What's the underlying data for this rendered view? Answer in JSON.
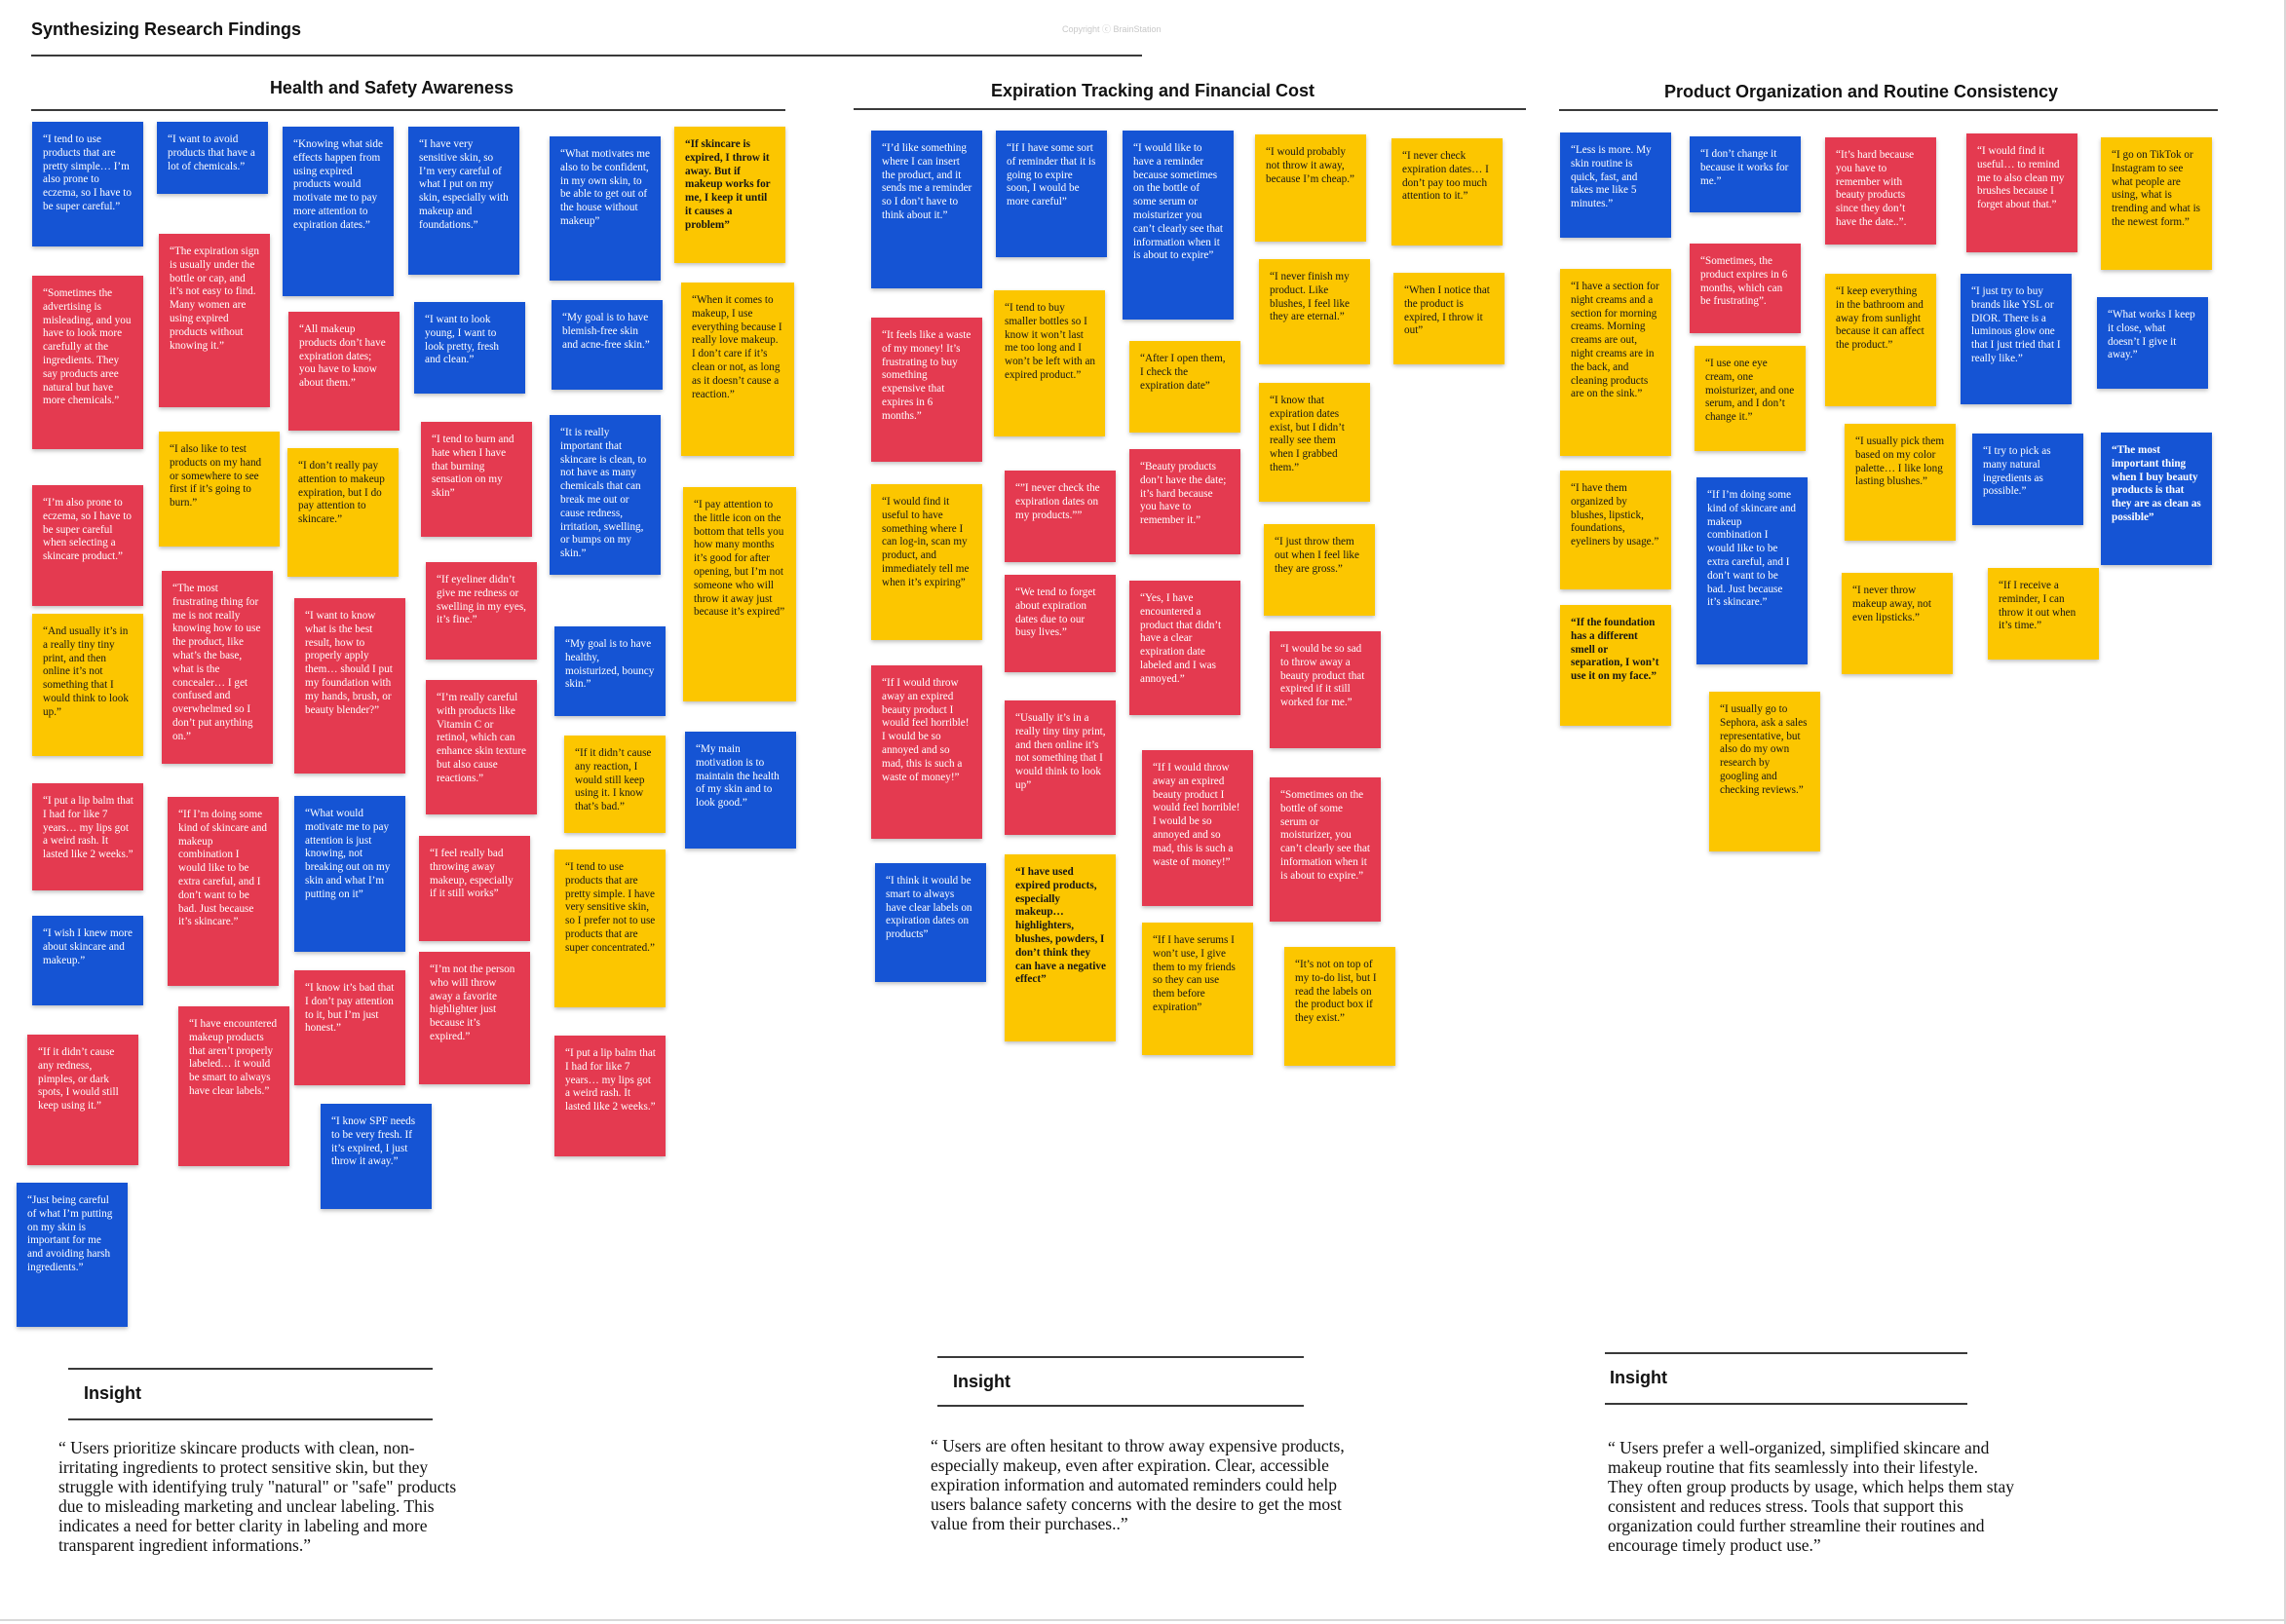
{
  "page": {
    "title": "Synthesizing Research Findings",
    "copyright": "Copyright ⓒ BrainStation"
  },
  "colors": {
    "blue": "#1554d4",
    "red": "#e43a50",
    "yellow": "#fcc600"
  },
  "sections": [
    {
      "title": "Health and Safety Awareness",
      "insight_label": "Insight",
      "insight_text": "“ Users prioritize skincare products with clean, non-irritating ingredients to protect sensitive skin, but they struggle with identifying truly \"natural\" or \"safe\" products due to misleading marketing and unclear labeling. This indicates a need for better clarity in labeling and more transparent ingredient informations.”"
    },
    {
      "title": "Expiration Tracking and Financial Cost",
      "insight_label": "Insight",
      "insight_text": "“ Users are often hesitant to throw away expensive products, especially makeup, even after expiration. Clear, accessible expiration information and automated reminders could help users balance safety concerns with the desire to get the most value from their purchases..”"
    },
    {
      "title": "Product Organization and Routine Consistency",
      "insight_label": "Insight",
      "insight_text": "“ Users prefer a well-organized, simplified skincare and makeup routine that fits seamlessly into their lifestyle. They often group products by usage, which helps them stay consistent and reduces stress. Tools that support this organization could further streamline their routines and encourage timely product use.”"
    }
  ],
  "notes": [
    {
      "color": "blue",
      "text": "“I tend to use products that are pretty simple… I’m also prone to eczema, so I have to be super careful.”"
    },
    {
      "color": "red",
      "text": "“Sometimes the advertising is misleading, and you have to look more carefully at the ingredients. They say products aree natural but have more chemicals.”"
    },
    {
      "color": "red",
      "text": "“I’m also prone to eczema, so I have to be super careful when selecting a skincare product.”"
    },
    {
      "color": "yellow",
      "text": "“And usually it’s in a really tiny tiny print, and then online it’s not something that I would think to look up.”"
    },
    {
      "color": "red",
      "text": "“I put a lip balm that I had for like 7 years… my lips got a weird rash. It lasted like 2 weeks.”"
    },
    {
      "color": "blue",
      "text": "“I wish I knew more about skincare and makeup.”"
    },
    {
      "color": "red",
      "text": "“If it didn’t cause any redness, pimples, or dark spots, I would still keep using it.”"
    },
    {
      "color": "blue",
      "text": "“Just being careful of what I’m putting on my skin is important for me and avoiding harsh ingredients.”"
    },
    {
      "color": "blue",
      "text": "“I want to avoid products that have a lot of chemicals.”"
    },
    {
      "color": "red",
      "text": "“The expiration sign is usually under the bottle or cap, and it’s not easy to find. Many women are using expired products without knowing it.”"
    },
    {
      "color": "yellow",
      "text": "“I also like to test products on my hand or somewhere to see first if it’s going to burn.”"
    },
    {
      "color": "red",
      "text": "“The most frustrating thing for me is not really knowing how to use the product, like what’s the base, what is the concealer… I get confused and overwhelmed so I don’t put anything on.”"
    },
    {
      "color": "red",
      "text": "“If I’m doing some kind of skincare and makeup combination I would like to be extra careful, and I don’t want to be bad. Just because it’s skincare.”"
    },
    {
      "color": "red",
      "text": "“I have encountered makeup products that aren’t properly labeled… it would be smart to always have clear labels.”"
    },
    {
      "color": "blue",
      "text": "“Knowing what side effects happen from using expired products would motivate me to pay more attention to expiration dates.”"
    },
    {
      "color": "red",
      "text": "“All makeup products don’t have expiration dates; you have to know about them.”"
    },
    {
      "color": "yellow",
      "text": "“I don’t really pay attention to makeup expiration, but I do pay attention to skincare.”"
    },
    {
      "color": "red",
      "text": "“I want to know what is the best result, how to properly apply them… should I put my foundation with my hands, brush, or beauty blender?”"
    },
    {
      "color": "blue",
      "text": "“What would motivate me to pay attention is just knowing, not breaking out on my skin and what I’m putting on it”"
    },
    {
      "color": "red",
      "text": "“I know it’s bad that I don’t pay attention to it, but I’m just honest.”"
    },
    {
      "color": "blue",
      "text": "“I know SPF needs to be very fresh. If it’s expired, I just throw it away.”"
    },
    {
      "color": "blue",
      "text": "“I have very sensitive skin, so I’m very careful of what I put on my skin, especially with makeup and foundations.”"
    },
    {
      "color": "blue",
      "text": "“I want to look young, I want to look pretty, fresh and clean.”"
    },
    {
      "color": "red",
      "text": "“I tend to burn and hate when I have that burning sensation on my skin”"
    },
    {
      "color": "red",
      "text": "“If eyeliner didn’t give me redness or swelling in my eyes, it’s fine.”"
    },
    {
      "color": "red",
      "text": "“I’m really careful with products like Vitamin C or retinol, which can enhance skin texture but also cause reactions.”"
    },
    {
      "color": "red",
      "text": "“I feel really bad throwing away makeup, especially if it still works”"
    },
    {
      "color": "red",
      "text": "“I’m not the person who will throw away a favorite highlighter just because it’s expired.”"
    },
    {
      "color": "blue",
      "text": "“What motivates me also to be confident, in my own skin, to be able to get out of the house without makeup”"
    },
    {
      "color": "blue",
      "text": "“My goal is to have blemish-free skin and acne-free skin.”"
    },
    {
      "color": "blue",
      "text": "“It is really important that skincare is clean, to not have as many chemicals that can break me out or cause redness, irritation, swelling, or bumps on my skin.”"
    },
    {
      "color": "blue",
      "text": "“My goal is to have healthy, moisturized, bouncy skin.”"
    },
    {
      "color": "yellow",
      "bold": true,
      "text": "“If it didn’t cause any reaction, I would still keep using it. I know that’s bad.”"
    },
    {
      "color": "yellow",
      "text": "“I tend to use products that are pretty simple. I have very sensitive skin, so I prefer not to use products that are super concentrated.”"
    },
    {
      "color": "red",
      "text": "“I put a lip balm that I had for like 7 years… my lips got a weird rash. It lasted like 2 weeks.”"
    },
    {
      "color": "yellow",
      "bold": true,
      "text": "“If skincare is expired, I throw it away. But if makeup works for me, I keep it until it causes a problem”"
    },
    {
      "color": "yellow",
      "text": "“When it comes to makeup, I use everything because I really love makeup. I don’t care if it’s clean or not, as long as it doesn’t cause a reaction.”"
    },
    {
      "color": "yellow",
      "text": "“I pay attention to the little icon on the bottom that tells you how many months it’s good for after opening, but I’m not someone who will throw it away just because it’s expired”"
    },
    {
      "color": "blue",
      "text": "“My main motivation is to maintain the health of my skin and to look good.”"
    },
    {
      "color": "blue",
      "text": "“I’d like something where I can insert the product, and it sends me a reminder so I don’t have to think about it.”"
    },
    {
      "color": "red",
      "text": "“It feels like a waste of my money! It’s frustrating to buy something expensive that expires in 6 months.”"
    },
    {
      "color": "yellow",
      "text": "“I would find it useful to have something where I can log-in, scan my product, and immediately tell me when it’s expiring”"
    },
    {
      "color": "red",
      "text": "“If I would throw away an expired beauty product I would feel horrible! I would be so annoyed and so mad, this is such a waste of money!”"
    },
    {
      "color": "blue",
      "text": "“I think it would be smart to always have clear labels on expiration dates on products”"
    },
    {
      "color": "blue",
      "text": "“If I have some sort of reminder that it is going to expire soon, I would be more careful”"
    },
    {
      "color": "yellow",
      "text": "“I tend to buy smaller bottles so I know it won’t last me too long and I won’t be left with an expired product.”"
    },
    {
      "color": "red",
      "text": "“”I never check the expiration dates on my products.””"
    },
    {
      "color": "red",
      "text": "“We tend to forget about expiration dates due to our busy lives.”"
    },
    {
      "color": "red",
      "text": "“Usually it’s in a really tiny tiny print, and then online it’s not something that I would think to look up”"
    },
    {
      "color": "yellow",
      "bold": true,
      "text": "“I have used expired products, especially makeup… highlighters, blushes, powders, I don’t think they can have a negative effect”"
    },
    {
      "color": "blue",
      "text": "“I would like to have a reminder because sometimes on the bottle of some serum or moisturizer you can’t clearly see that information when it is about to expire”"
    },
    {
      "color": "yellow",
      "text": "“After I open them, I check the expiration date”"
    },
    {
      "color": "red",
      "text": "“Beauty products don’t have the date; it’s hard because you have to remember it.”"
    },
    {
      "color": "red",
      "text": "“Yes, I have encountered a product that didn’t have a clear expiration date labeled and I was annoyed.”"
    },
    {
      "color": "red",
      "text": "“If I would throw away an expired beauty product I would feel horrible! I would be so annoyed and so mad, this is such a waste of money!”"
    },
    {
      "color": "yellow",
      "text": "“If I have serums I won’t use, I give them to my friends so they can use them before expiration”"
    },
    {
      "color": "yellow",
      "text": "“I would probably not throw it away, because I’m cheap.”"
    },
    {
      "color": "yellow",
      "text": "“I never finish my product. Like blushes, I feel like they are eternal.”"
    },
    {
      "color": "yellow",
      "text": "“I know that expiration dates exist, but I didn’t really see them when I grabbed them.”"
    },
    {
      "color": "yellow",
      "text": "“I just throw them out when I feel like they are gross.”"
    },
    {
      "color": "red",
      "text": "“I would be so sad to throw away a beauty product that expired if it still worked for me.”"
    },
    {
      "color": "red",
      "text": "“Sometimes on the bottle of some serum or moisturizer, you can’t clearly see that information when it is about to expire.”"
    },
    {
      "color": "yellow",
      "text": "“It’s not on top of my to-do list, but I read the labels on the product box if they exist.”"
    },
    {
      "color": "yellow",
      "text": "“I never check expiration dates… I don’t pay too much attention to it.”"
    },
    {
      "color": "yellow",
      "text": "“When I notice that the product is expired, I throw it out”"
    },
    {
      "color": "blue",
      "text": "“Less is more. My skin routine is quick, fast, and takes me like 5 minutes.”"
    },
    {
      "color": "yellow",
      "text": "“I have a section for night creams and a section for morning creams. Morning creams are out, night creams are in the back, and cleaning products are on the sink.”"
    },
    {
      "color": "yellow",
      "text": "“I have them organized by blushes, lipstick, foundations, eyeliners by usage.”"
    },
    {
      "color": "yellow",
      "bold": true,
      "text": "“If the foundation has a different smell or separation, I won’t use it on my face.”"
    },
    {
      "color": "blue",
      "text": "“I don’t change it because it works for me.”"
    },
    {
      "color": "red",
      "text": "“Sometimes, the product expires in 6 months, which can be frustrating”."
    },
    {
      "color": "yellow",
      "text": "“I use one eye cream, one moisturizer, and one serum, and I don’t change it.”"
    },
    {
      "color": "blue",
      "text": "“If I’m doing some kind of skincare and makeup combination I would like to be extra careful, and I don’t want to be bad. Just because it’s skincare.”"
    },
    {
      "color": "yellow",
      "text": "“I usually go to Sephora, ask a sales representative, but also do my own research by googling and checking reviews.”"
    },
    {
      "color": "red",
      "text": "“It’s hard because you have to remember with beauty products since they don’t have the date..”."
    },
    {
      "color": "yellow",
      "text": "“I keep everything in the bathroom and away from sunlight because it can affect the product.”"
    },
    {
      "color": "yellow",
      "text": "“I usually pick them based on my color palette… I like long lasting blushes.”"
    },
    {
      "color": "yellow",
      "text": "“I never throw makeup away, not even lipsticks.”"
    },
    {
      "color": "red",
      "text": "“I would find it useful… to remind me to also clean my brushes because I forget about that.”"
    },
    {
      "color": "blue",
      "text": "“I just try to buy brands like YSL or DIOR. There is a luminous glow one that I just tried that I really like.”"
    },
    {
      "color": "blue",
      "text": "“I try to pick as many natural ingredients as possible.”"
    },
    {
      "color": "yellow",
      "text": "“If I receive a reminder, I can throw it out when it’s time.”"
    },
    {
      "color": "yellow",
      "text": "“I go on TikTok or Instagram to see what people are using, what is trending and what is the newest form.”"
    },
    {
      "color": "blue",
      "text": "“What works I keep it close, what doesn’t I give it away.”"
    },
    {
      "color": "blue",
      "bold": true,
      "text": "“The most important thing when I buy beauty products is that they are as clean as possible”"
    }
  ]
}
